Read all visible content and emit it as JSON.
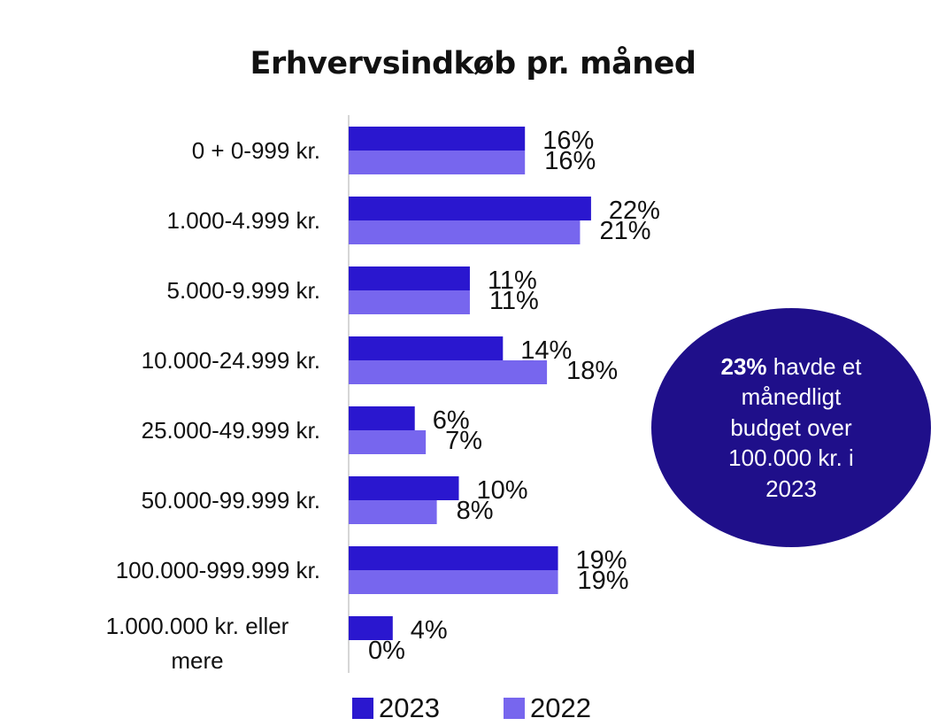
{
  "chart_data": {
    "type": "bar",
    "orientation": "horizontal",
    "title": "Erhvervsindkøb pr. måned",
    "categories": [
      "0 + 0-999 kr.",
      "1.000-4.999 kr.",
      "5.000-9.999 kr.",
      "10.000-24.999 kr.",
      "25.000-49.999 kr.",
      "50.000-99.999 kr.",
      "100.000-999.999 kr.",
      "1.000.000 kr. eller mere"
    ],
    "series": [
      {
        "name": "2023",
        "color": "#2a17cf",
        "values": [
          16,
          22,
          11,
          14,
          6,
          10,
          19,
          4
        ],
        "labels": [
          "16%",
          "22%",
          "11%",
          "14%",
          "6%",
          "10%",
          "19%",
          "4%"
        ]
      },
      {
        "name": "2022",
        "color": "#7766ee",
        "values": [
          16,
          21,
          11,
          18,
          7,
          8,
          19,
          0
        ],
        "labels": [
          "16%",
          "21%",
          "11%",
          "18%",
          "7%",
          "8%",
          "19%",
          "0%"
        ]
      }
    ],
    "xlim": [
      0,
      22
    ],
    "xlabel": "",
    "ylabel": "",
    "grid": false,
    "legend": "bottom"
  },
  "callout": {
    "highlight": "23%",
    "text": " havde et månedligt budget over 100.000 kr. i 2023",
    "color": "#1f0f8a"
  }
}
